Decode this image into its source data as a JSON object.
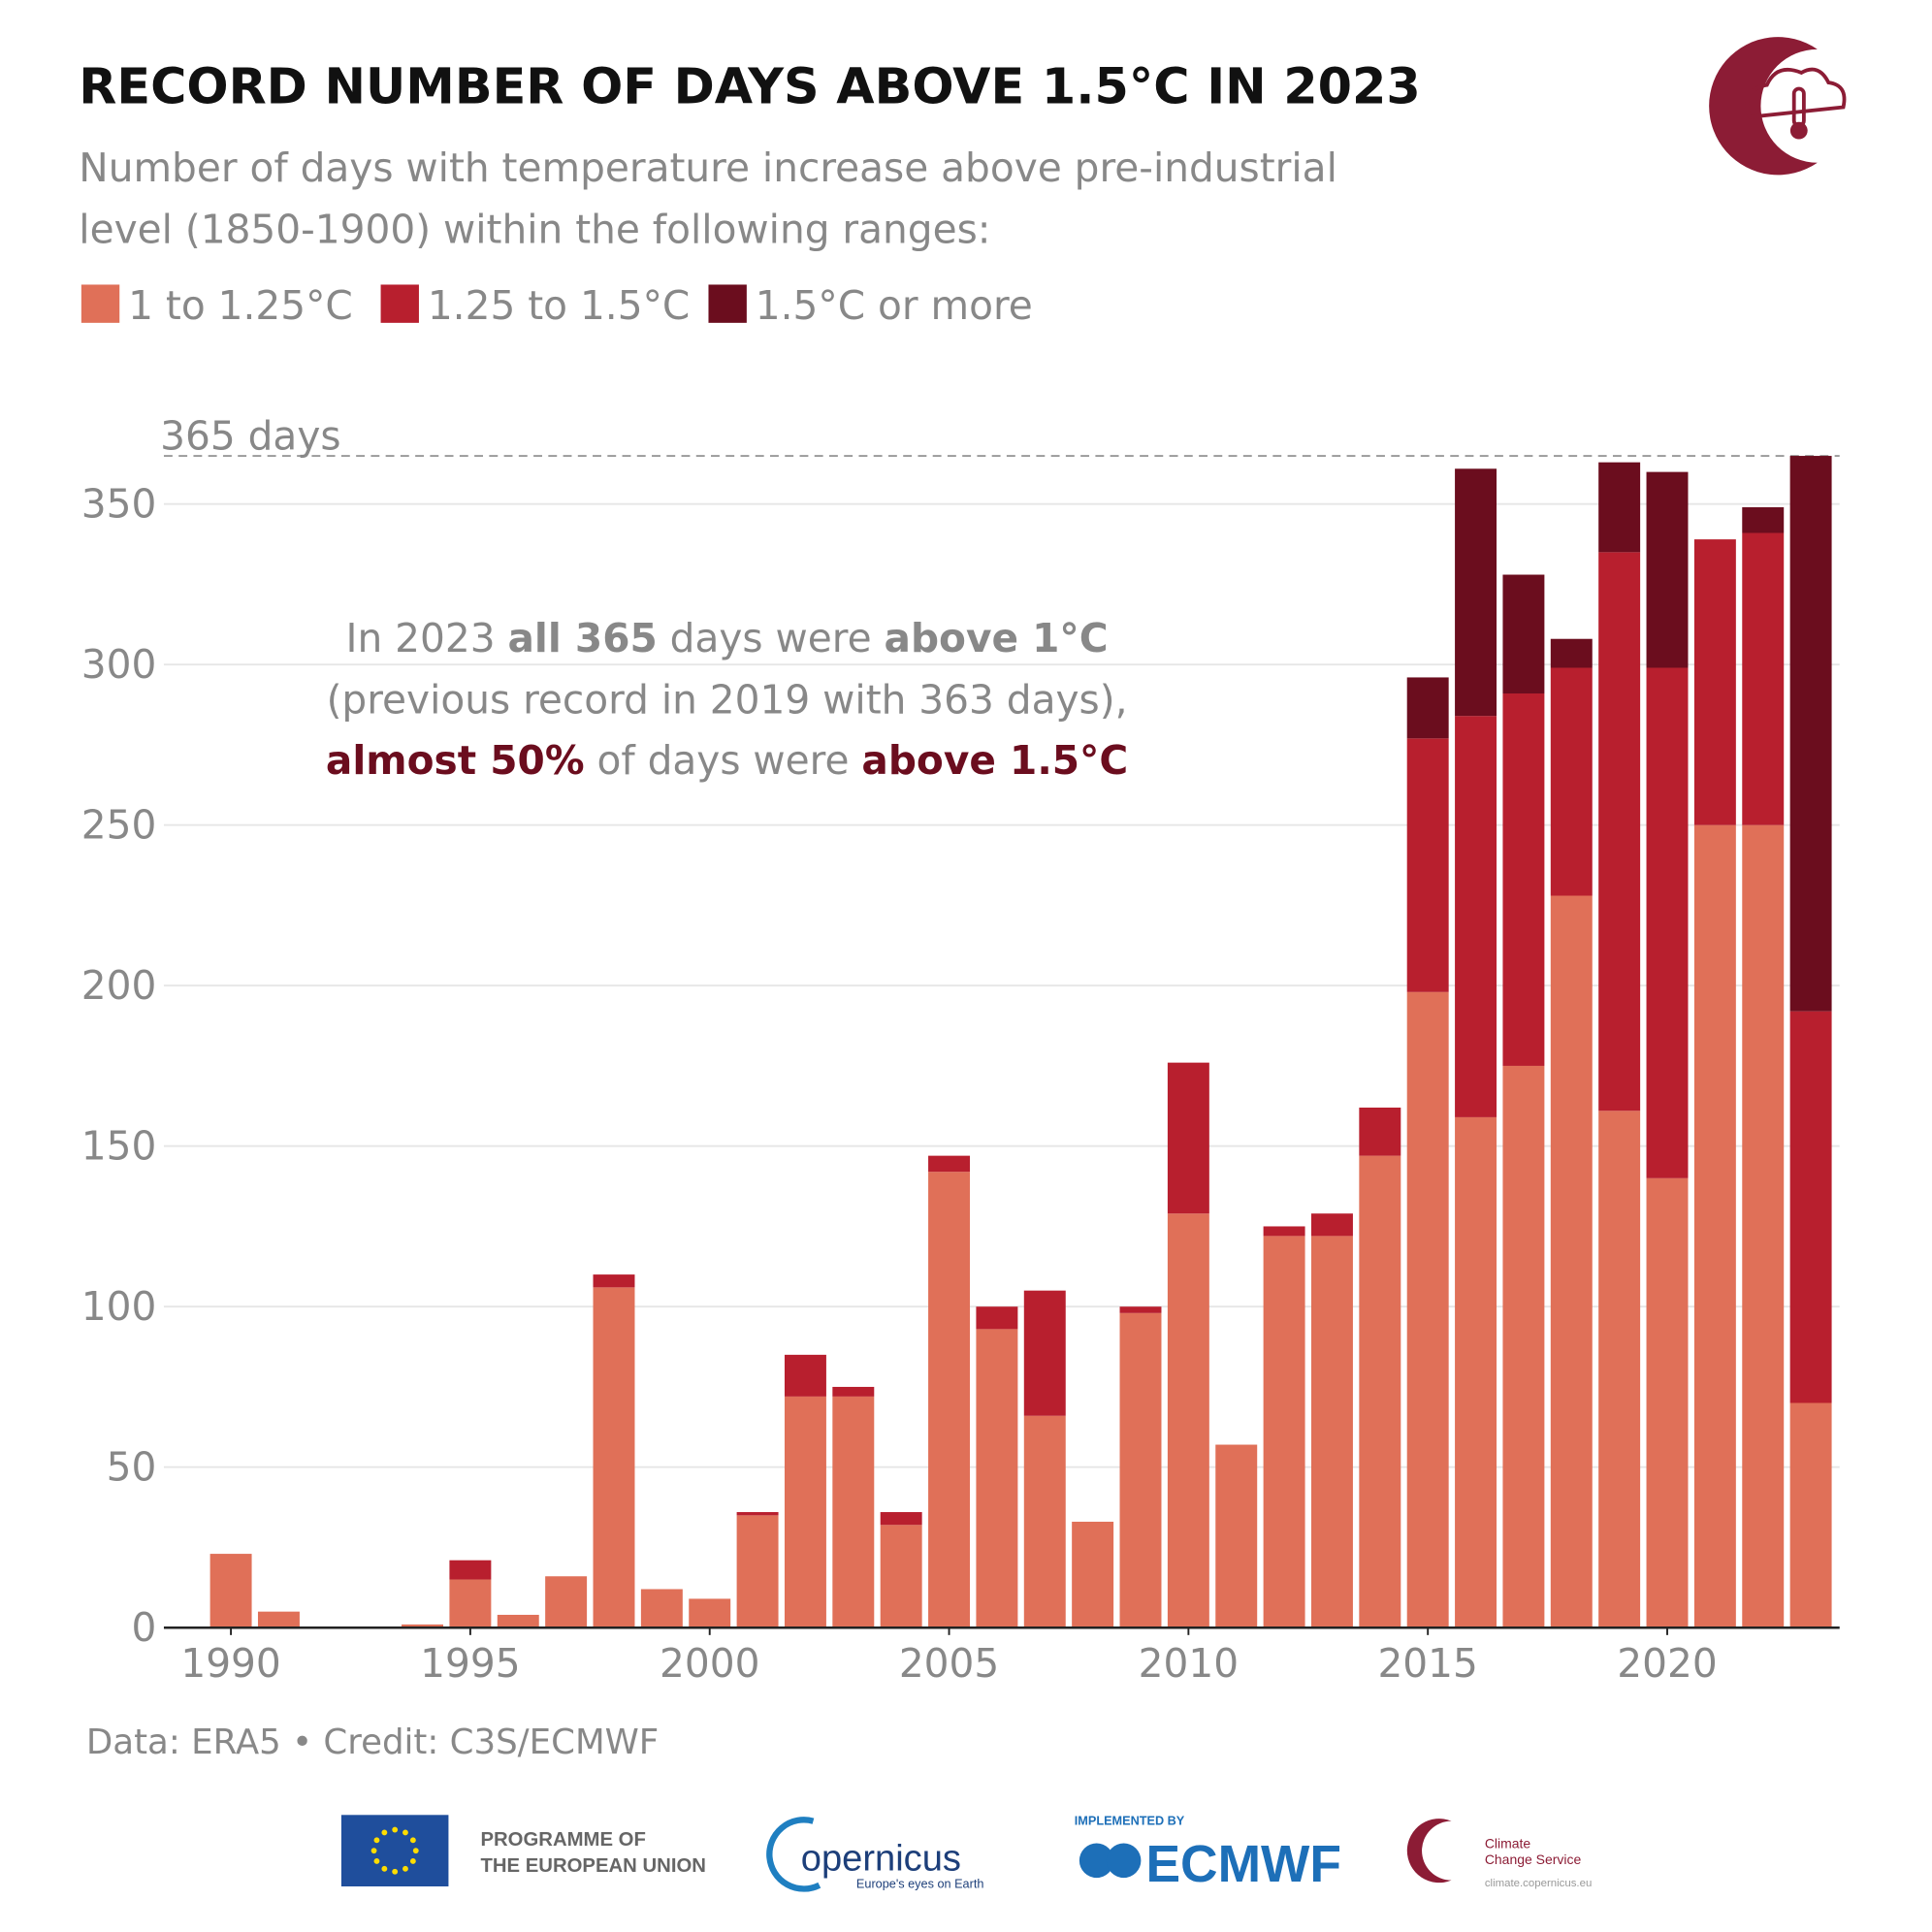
{
  "chart_data": {
    "type": "stacked_bar",
    "title": "RECORD NUMBER OF DAYS ABOVE 1.5°C IN 2023",
    "subtitle": [
      "Number of days with temperature increase above pre-industrial",
      "level (1850-1900) within the following ranges:"
    ],
    "x": [
      1990,
      1991,
      1992,
      1993,
      1994,
      1995,
      1996,
      1997,
      1998,
      1999,
      2000,
      2001,
      2002,
      2003,
      2004,
      2005,
      2006,
      2007,
      2008,
      2009,
      2010,
      2011,
      2012,
      2013,
      2014,
      2015,
      2016,
      2017,
      2018,
      2019,
      2020,
      2021,
      2022,
      2023
    ],
    "series": [
      {
        "name": "1 to 1.25°C",
        "color": "#e07058",
        "values": [
          23,
          5,
          0,
          0,
          1,
          15,
          4,
          16,
          106,
          12,
          9,
          35,
          72,
          72,
          32,
          142,
          93,
          66,
          33,
          98,
          129,
          57,
          122,
          122,
          147,
          198,
          159,
          175,
          228,
          161,
          140,
          250,
          250,
          70
        ]
      },
      {
        "name": "1.25 to 1.5°C",
        "color": "#b81f2e",
        "values": [
          0,
          0,
          0,
          0,
          0,
          6,
          0,
          0,
          4,
          0,
          0,
          1,
          13,
          3,
          4,
          5,
          7,
          39,
          0,
          2,
          47,
          0,
          3,
          7,
          15,
          79,
          125,
          116,
          71,
          174,
          159,
          89,
          91,
          122
        ]
      },
      {
        "name": "1.5°C or more",
        "color": "#6b0d1e",
        "values": [
          0,
          0,
          0,
          0,
          0,
          0,
          0,
          0,
          0,
          0,
          0,
          0,
          0,
          0,
          0,
          0,
          0,
          0,
          0,
          0,
          0,
          0,
          0,
          0,
          0,
          19,
          77,
          37,
          9,
          28,
          61,
          0,
          8,
          173
        ]
      }
    ],
    "xlim": [
      1988.6,
      2023.6
    ],
    "xticks": [
      1990,
      1995,
      2000,
      2005,
      2010,
      2015,
      2020
    ],
    "ylim": [
      0,
      365
    ],
    "yticks": [
      0,
      50,
      100,
      150,
      200,
      250,
      300,
      350
    ],
    "grid": true,
    "ref_line": {
      "value": 365,
      "label": "365 days"
    },
    "annotation": [
      [
        "In 2023 ",
        "all 365",
        " days were ",
        "above 1°C"
      ],
      [
        "(previous record in 2019 with 363 days),"
      ],
      [
        "almost 50%",
        " of days were ",
        "above 1.5°C"
      ]
    ],
    "source": "Data: ERA5 • Credit: C3S/ECMWF"
  },
  "logos": {
    "eu": [
      "PROGRAMME OF",
      "THE EUROPEAN UNION"
    ],
    "copernicus": [
      "opernicus",
      "Europe's eyes on Earth"
    ],
    "ecmwf": [
      "IMPLEMENTED BY",
      "ECMWF"
    ],
    "c3s": [
      "Climate",
      "Change Service",
      "climate.copernicus.eu"
    ]
  }
}
